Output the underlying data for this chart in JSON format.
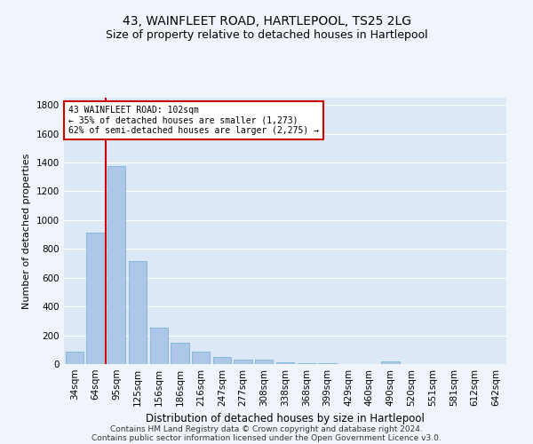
{
  "title": "43, WAINFLEET ROAD, HARTLEPOOL, TS25 2LG",
  "subtitle": "Size of property relative to detached houses in Hartlepool",
  "xlabel": "Distribution of detached houses by size in Hartlepool",
  "ylabel": "Number of detached properties",
  "categories": [
    "34sqm",
    "64sqm",
    "95sqm",
    "125sqm",
    "156sqm",
    "186sqm",
    "216sqm",
    "247sqm",
    "277sqm",
    "308sqm",
    "338sqm",
    "368sqm",
    "399sqm",
    "429sqm",
    "460sqm",
    "490sqm",
    "520sqm",
    "551sqm",
    "581sqm",
    "612sqm",
    "642sqm"
  ],
  "values": [
    85,
    910,
    1375,
    715,
    250,
    148,
    88,
    52,
    33,
    30,
    15,
    8,
    4,
    2,
    1,
    20,
    1,
    0,
    0,
    0,
    0
  ],
  "bar_color": "#aec6e8",
  "bar_edge_color": "#6aaed6",
  "vline_index": 2,
  "vline_color": "#cc0000",
  "annotation_line1": "43 WAINFLEET ROAD: 102sqm",
  "annotation_line2": "← 35% of detached houses are smaller (1,273)",
  "annotation_line3": "62% of semi-detached houses are larger (2,275) →",
  "annotation_box_color": "#cc0000",
  "annotation_bg": "white",
  "ylim": [
    0,
    1850
  ],
  "yticks": [
    0,
    200,
    400,
    600,
    800,
    1000,
    1200,
    1400,
    1600,
    1800
  ],
  "footer_line1": "Contains HM Land Registry data © Crown copyright and database right 2024.",
  "footer_line2": "Contains public sector information licensed under the Open Government Licence v3.0.",
  "bg_color": "#f0f4fb",
  "plot_bg": "#dce8f5",
  "grid_color": "white",
  "title_fontsize": 10,
  "subtitle_fontsize": 9,
  "xlabel_fontsize": 8.5,
  "ylabel_fontsize": 8,
  "tick_fontsize": 7.5,
  "footer_fontsize": 6.5
}
